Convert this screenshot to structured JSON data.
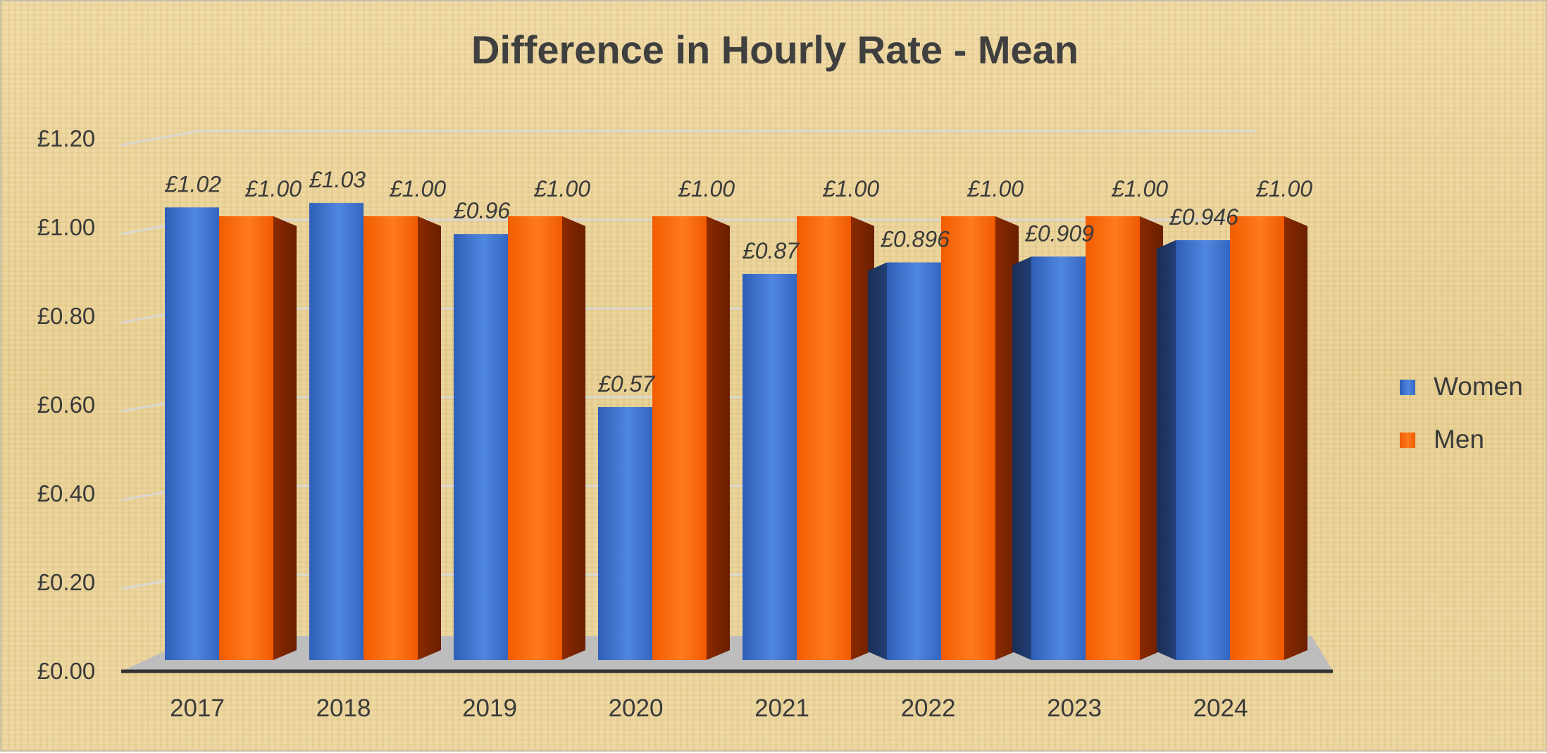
{
  "chart_data": {
    "type": "bar",
    "title": "Difference in Hourly Rate - Mean",
    "xlabel": "",
    "ylabel": "",
    "categories": [
      "2017",
      "2018",
      "2019",
      "2020",
      "2021",
      "2022",
      "2023",
      "2024"
    ],
    "series": [
      {
        "name": "Women",
        "values": [
          1.02,
          1.03,
          0.96,
          0.57,
          0.87,
          0.896,
          0.909,
          0.946
        ],
        "labels": [
          "£1.02",
          "£1.03",
          "£0.96",
          "£0.57",
          "£0.87",
          "£0.896",
          "£0.909",
          "£0.946"
        ]
      },
      {
        "name": "Men",
        "values": [
          1.0,
          1.0,
          1.0,
          1.0,
          1.0,
          1.0,
          1.0,
          1.0
        ],
        "labels": [
          "£1.00",
          "£1.00",
          "£1.00",
          "£1.00",
          "£1.00",
          "£1.00",
          "£1.00",
          "£1.00"
        ]
      }
    ],
    "y_ticks": [
      "£0.00",
      "£0.20",
      "£0.40",
      "£0.60",
      "£0.80",
      "£1.00",
      "£1.20"
    ],
    "ylim": [
      0,
      1.2
    ],
    "grid": true,
    "legend": "right",
    "colors": {
      "Women": "#3b6fc9",
      "Men": "#ff6a00"
    }
  }
}
